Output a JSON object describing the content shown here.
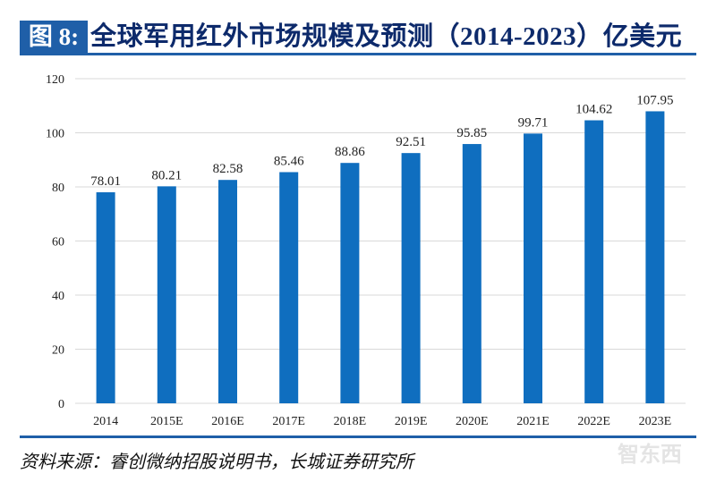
{
  "figure_label": "图 8:",
  "title": "全球军用红外市场规模及预测（2014-2023）亿美元",
  "source": "资料来源：睿创微纳招股说明书，长城证券研究所",
  "watermark": "智东西",
  "colors": {
    "bar": "#0f6ebf",
    "accent": "#1f5fa8",
    "title": "#0d2a6b",
    "grid": "#d9d9d9"
  },
  "chart_data": {
    "type": "bar",
    "categories": [
      "2014",
      "2015E",
      "2016E",
      "2017E",
      "2018E",
      "2019E",
      "2020E",
      "2021E",
      "2022E",
      "2023E"
    ],
    "values": [
      78.01,
      80.21,
      82.58,
      85.46,
      88.86,
      92.51,
      95.85,
      99.71,
      104.62,
      107.95
    ],
    "data_labels": [
      "78.01",
      "80.21",
      "82.58",
      "85.46",
      "88.86",
      "92.51",
      "95.85",
      "99.71",
      "104.62",
      "107.95"
    ],
    "ylim": [
      0,
      120
    ],
    "yticks": [
      0,
      20,
      40,
      60,
      80,
      100,
      120
    ],
    "grid": true,
    "legend": "none"
  }
}
